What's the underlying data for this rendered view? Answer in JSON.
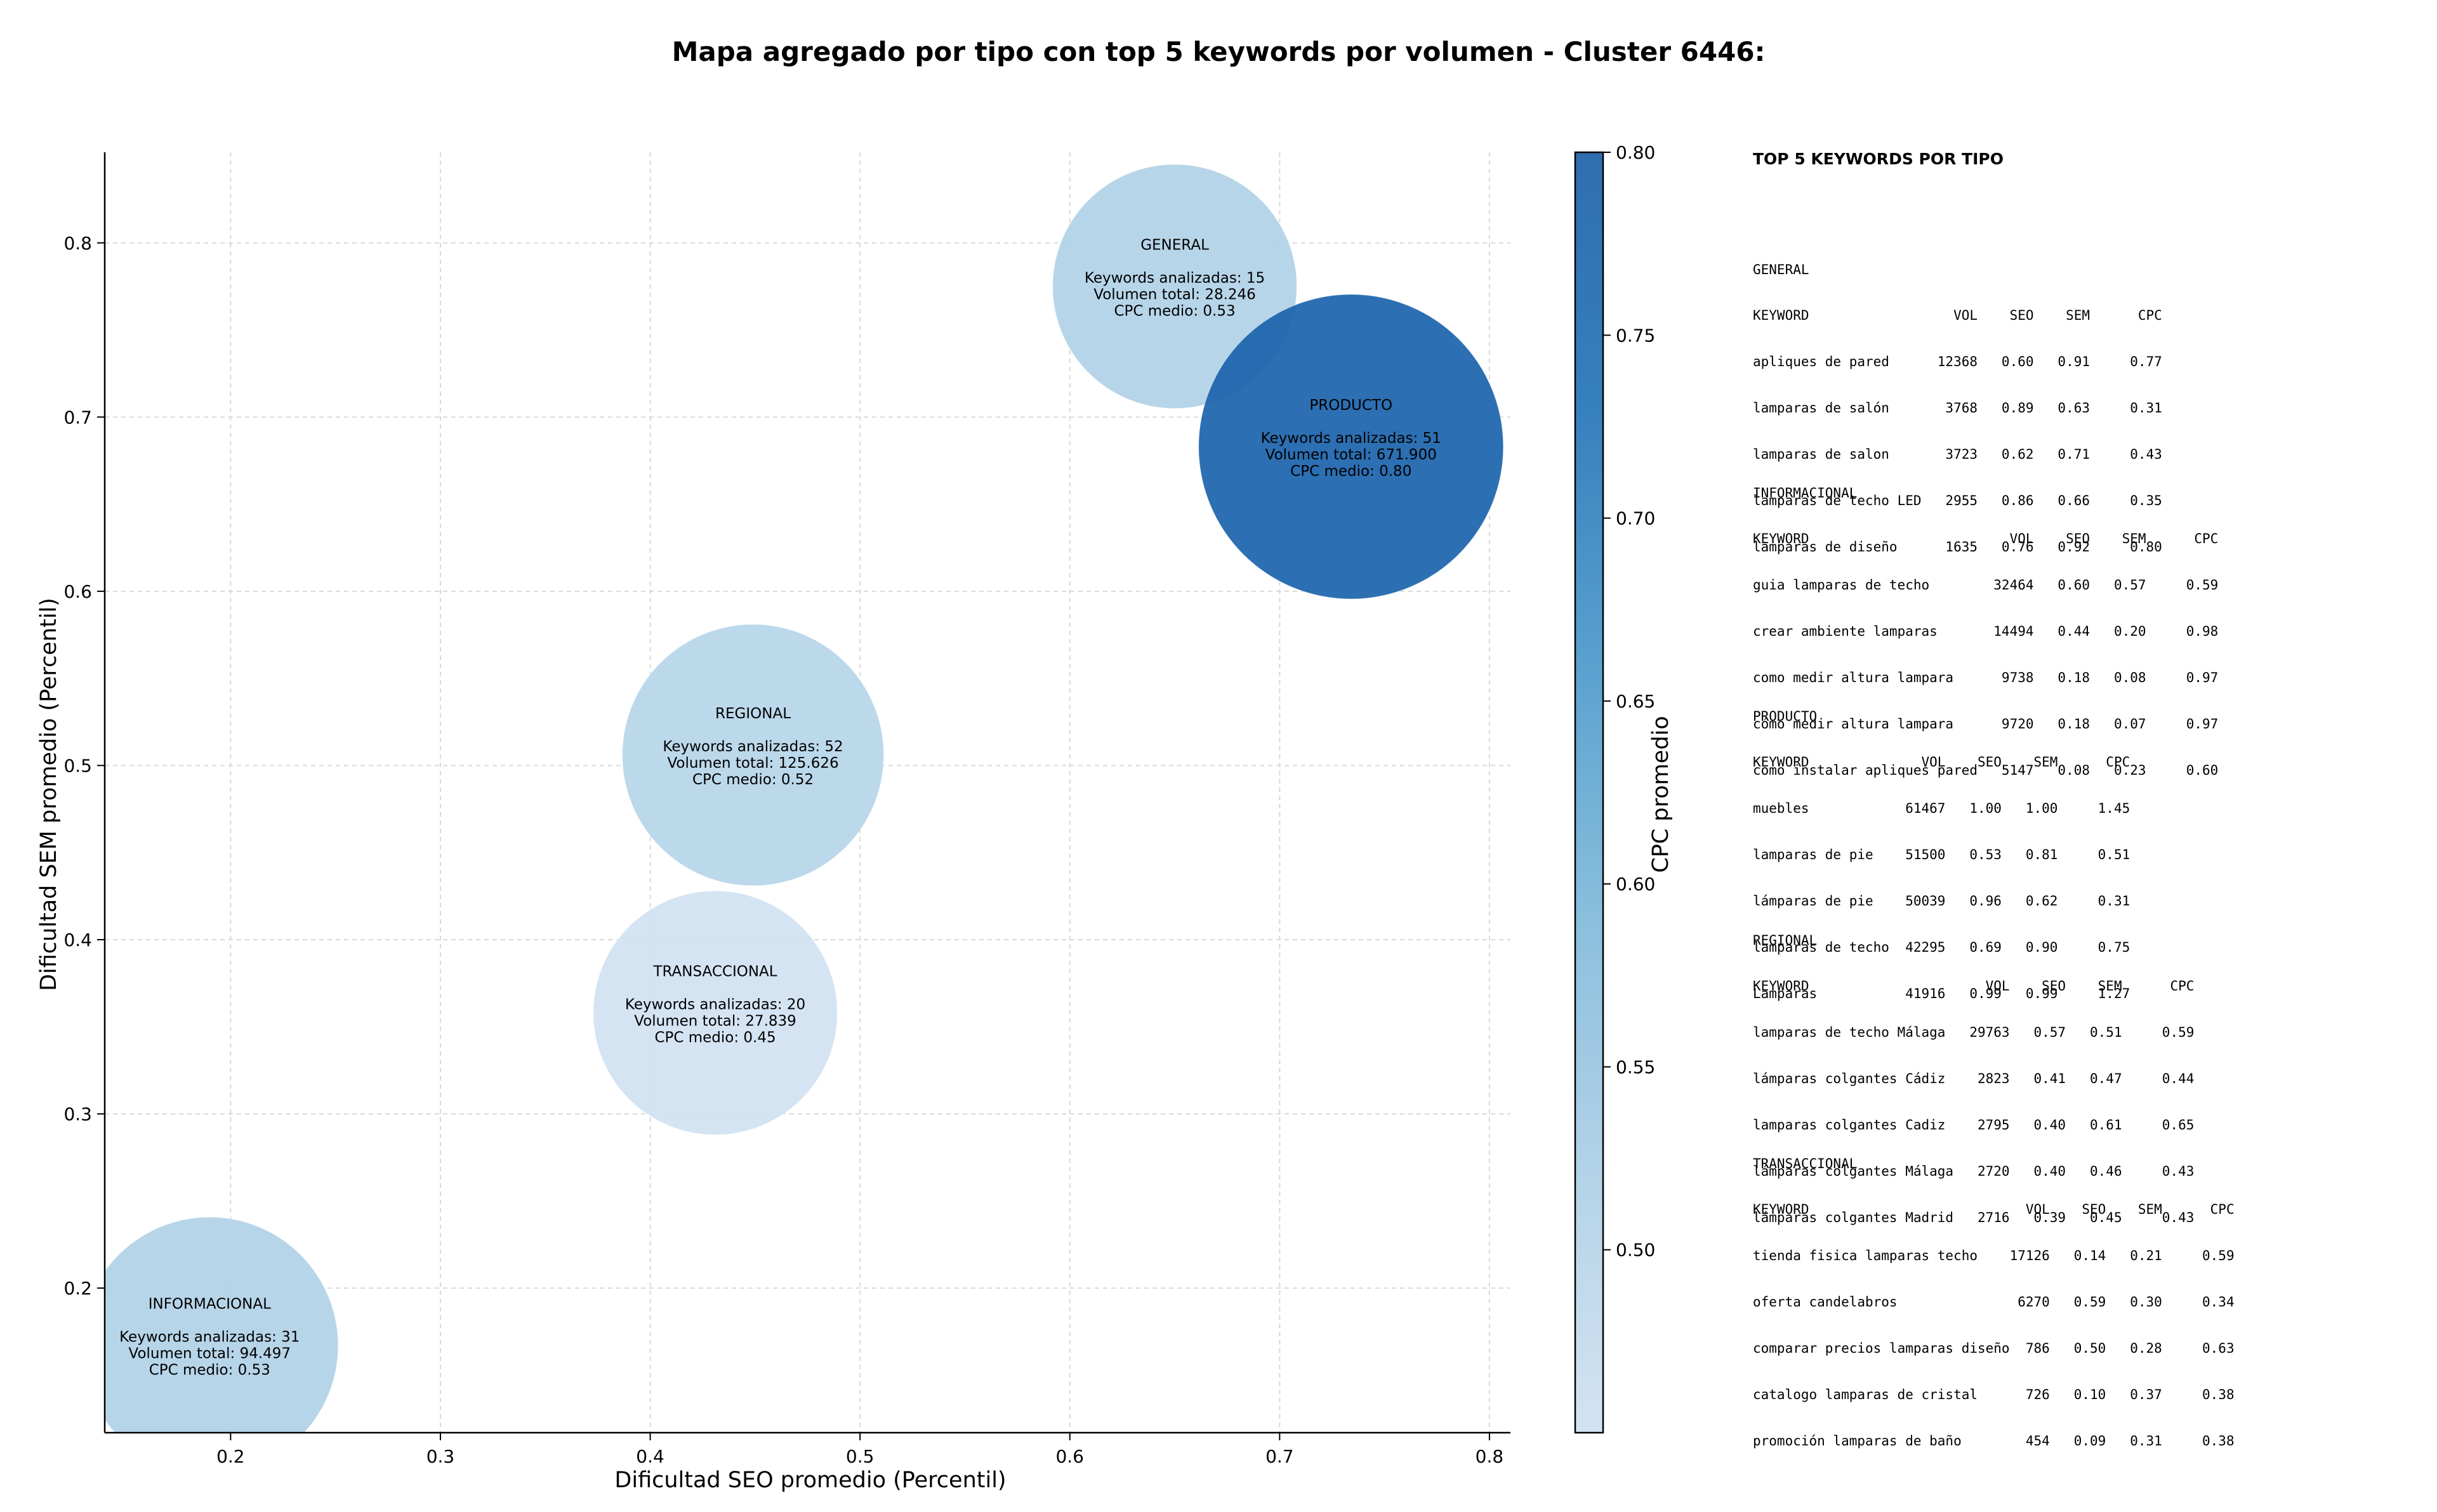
{
  "chart_data": {
    "type": "scatter",
    "title": "Mapa agregado por tipo con top 5 keywords por volumen - Cluster 6446:",
    "xlabel": "Dificultad SEO promedio (Percentil)",
    "ylabel": "Dificultad SEM promedio (Percentil)",
    "xlim": [
      0.14,
      0.81
    ],
    "ylim": [
      0.117,
      0.852
    ],
    "xticks": [
      "0.2",
      "0.3",
      "0.4",
      "0.5",
      "0.6",
      "0.7",
      "0.8"
    ],
    "yticks": [
      "0.2",
      "0.3",
      "0.4",
      "0.5",
      "0.6",
      "0.7",
      "0.8"
    ],
    "grid": true,
    "size_encodes": "Volumen total",
    "color_encodes": "CPC promedio",
    "colorbar": {
      "label": "CPC promedio",
      "min": 0.45,
      "max": 0.8,
      "ticks": [
        "0.50",
        "0.55",
        "0.60",
        "0.65",
        "0.70",
        "0.75",
        "0.80"
      ],
      "colors": [
        "#d3e3f2",
        "#b4d3e8",
        "#8abfdd",
        "#5aa1cf",
        "#3580be",
        "#2f6eb0"
      ]
    },
    "points": [
      {
        "name": "GENERAL",
        "x": 0.65,
        "y": 0.775,
        "count": 15,
        "volume": 28246,
        "cpc": 0.53,
        "line_count": "Keywords analizadas: 15",
        "line_volume": "Volumen total: 28.246",
        "line_cpc": "CPC medio: 0.53",
        "color": "#b1d2e7"
      },
      {
        "name": "PRODUCTO",
        "x": 0.734,
        "y": 0.683,
        "count": 51,
        "volume": 671900,
        "cpc": 0.8,
        "line_count": "Keywords analizadas: 51",
        "line_volume": "Volumen total: 671.900",
        "line_cpc": "CPC medio: 0.80",
        "color": "#1c64ac"
      },
      {
        "name": "REGIONAL",
        "x": 0.449,
        "y": 0.506,
        "count": 52,
        "volume": 125626,
        "cpc": 0.52,
        "line_count": "Keywords analizadas: 52",
        "line_volume": "Volumen total: 125.626",
        "line_cpc": "CPC medio: 0.52",
        "color": "#b7d5ea"
      },
      {
        "name": "TRANSACCIONAL",
        "x": 0.431,
        "y": 0.358,
        "count": 20,
        "volume": 27839,
        "cpc": 0.45,
        "line_count": "Keywords analizadas: 20",
        "line_volume": "Volumen total: 27.839",
        "line_cpc": "CPC medio: 0.45",
        "color": "#d2e2f2"
      },
      {
        "name": "INFORMACIONAL",
        "x": 0.19,
        "y": 0.167,
        "count": 31,
        "volume": 94497,
        "cpc": 0.53,
        "line_count": "Keywords analizadas: 31",
        "line_volume": "Volumen total: 94.497",
        "line_cpc": "CPC medio: 0.53",
        "color": "#b1d2e7"
      }
    ]
  },
  "side_panel": {
    "heading": "TOP 5 KEYWORDS POR TIPO",
    "blocks": [
      {
        "name": "GENERAL",
        "lines": [
          "GENERAL",
          "KEYWORD                  VOL    SEO    SEM      CPC",
          "apliques de pared      12368   0.60   0.91     0.77",
          "lamparas de salón       3768   0.89   0.63     0.31",
          "lamparas de salon       3723   0.62   0.71     0.43",
          "lamparas de techo LED   2955   0.86   0.66     0.35",
          "lamparas de diseño      1635   0.76   0.92     0.80"
        ]
      },
      {
        "name": "INFORMACIONAL",
        "lines": [
          "INFORMACIONAL",
          "KEYWORD                         VOL    SEO    SEM      CPC",
          "guia lamparas de techo        32464   0.60   0.57     0.59",
          "crear ambiente lamparas       14494   0.44   0.20     0.98",
          "como medir altura lampara      9738   0.18   0.08     0.97",
          "cómo medir altura lampara      9720   0.18   0.07     0.97",
          "como instalar apliques pared   5147   0.08   0.23     0.60"
        ]
      },
      {
        "name": "PRODUCTO",
        "lines": [
          "PRODUCTO",
          "KEYWORD              VOL    SEO    SEM      CPC",
          "muebles            61467   1.00   1.00     1.45",
          "lamparas de pie    51500   0.53   0.81     0.51",
          "lámparas de pie    50039   0.96   0.62     0.31",
          "lamparas de techo  42295   0.69   0.90     0.75",
          "Lamparas           41916   0.99   0.99     1.27"
        ]
      },
      {
        "name": "REGIONAL",
        "lines": [
          "REGIONAL",
          "KEYWORD                      VOL    SEO    SEM      CPC",
          "lamparas de techo Málaga   29763   0.57   0.51     0.59",
          "lámparas colgantes Cádiz    2823   0.41   0.47     0.44",
          "lamparas colgantes Cadiz    2795   0.40   0.61     0.65",
          "lámparas colgantes Málaga   2720   0.40   0.46     0.43",
          "lámparas colgantes Madrid   2716   0.39   0.45     0.43"
        ]
      },
      {
        "name": "TRANSACCIONAL",
        "lines": [
          "TRANSACCIONAL",
          "KEYWORD                           VOL    SEO    SEM      CPC",
          "tienda fisica lamparas techo    17126   0.14   0.21     0.59",
          "oferta candelabros               6270   0.59   0.30     0.34",
          "comparar precios lamparas diseño  786   0.50   0.28     0.63",
          "catalogo lamparas de cristal      726   0.10   0.37     0.38",
          "promoción lamparas de baño        454   0.09   0.31     0.38"
        ]
      }
    ]
  }
}
